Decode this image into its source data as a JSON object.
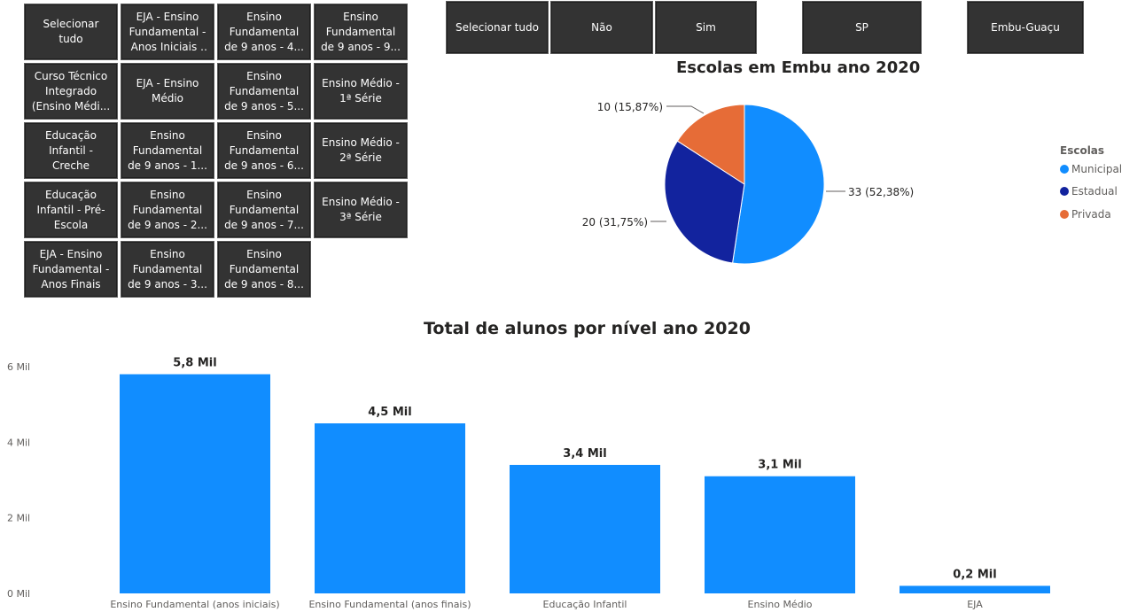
{
  "level_slicer": {
    "tiles": [
      [
        "Selecionar tudo",
        "EJA - Ensino Fundamental - Anos Iniciais - ...",
        "Ensino Fundamental de 9 anos - 4...",
        "Ensino Fundamental de 9 anos - 9..."
      ],
      [
        "Curso Técnico Integrado (Ensino Médi...",
        "EJA - Ensino Médio",
        "Ensino Fundamental de 9 anos - 5...",
        "Ensino Médio - 1ª Série"
      ],
      [
        "Educação Infantil - Creche",
        "Ensino Fundamental de 9 anos - 1...",
        "Ensino Fundamental de 9 anos - 6...",
        "Ensino Médio - 2ª Série"
      ],
      [
        "Educação Infantil - Pré-Escola",
        "Ensino Fundamental de 9 anos - 2...",
        "Ensino Fundamental de 9 anos - 7...",
        "Ensino Médio - 3ª Série"
      ],
      [
        "EJA - Ensino Fundamental - Anos Finais",
        "Ensino Fundamental de 9 anos - 3...",
        "Ensino Fundamental de 9 anos - 8..."
      ]
    ]
  },
  "top_slicer": {
    "select_all": "Selecionar tudo",
    "no": "Não",
    "yes": "Sim",
    "state": "SP",
    "city": "Embu-Guaçu"
  },
  "colors": {
    "municipal": "#118dff",
    "estadual": "#12239e",
    "privada": "#e66c37",
    "bar": "#118dff",
    "tile_bg": "#333333"
  },
  "pie_chart": {
    "title": "Escolas em Embu ano 2020",
    "legend_title": "Escolas",
    "chart_data": {
      "type": "pie",
      "title": "Escolas em Embu ano 2020",
      "legend_title": "Escolas",
      "legend_position": "right",
      "slices": [
        {
          "name": "Municipal",
          "value": 33,
          "percent": "52,38%",
          "label": "33 (52,38%)"
        },
        {
          "name": "Estadual",
          "value": 20,
          "percent": "31,75%",
          "label": "20 (31,75%)"
        },
        {
          "name": "Privada",
          "value": 10,
          "percent": "15,87%",
          "label": "10 (15,87%)"
        }
      ]
    }
  },
  "bar_chart": {
    "title": "Total de alunos por nível ano 2020",
    "chart_data": {
      "type": "bar",
      "title": "Total de alunos por nível ano 2020",
      "categories": [
        "Ensino Fundamental (anos iniciais)",
        "Ensino Fundamental (anos finais)",
        "Educação Infantil",
        "Ensino Médio",
        "EJA"
      ],
      "values": [
        5800,
        4500,
        3400,
        3100,
        200
      ],
      "data_labels": [
        "5,8 Mil",
        "4,5 Mil",
        "3,4 Mil",
        "3,1 Mil",
        "0,2 Mil"
      ],
      "yticks": [
        0,
        2000,
        4000,
        6000
      ],
      "ytick_labels": [
        "0 Mil",
        "2 Mil",
        "4 Mil",
        "6 Mil"
      ],
      "ylim": [
        0,
        6000
      ],
      "grid": false
    }
  }
}
